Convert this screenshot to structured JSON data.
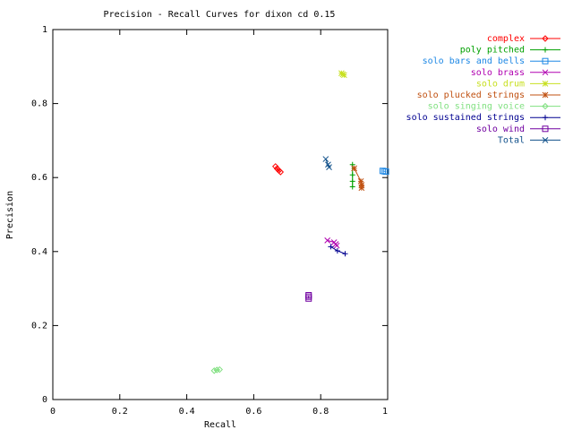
{
  "chart_data": {
    "type": "line",
    "title": "Precision - Recall Curves for dixon cd 0.15",
    "xlabel": "Recall",
    "ylabel": "Precision",
    "xlim": [
      0,
      1
    ],
    "ylim": [
      0,
      1
    ],
    "xticks": [
      "0",
      "0.2",
      "0.4",
      "0.6",
      "0.8",
      "1"
    ],
    "yticks": [
      "0",
      "0.2",
      "0.4",
      "0.6",
      "0.8",
      "1"
    ],
    "grid": false,
    "legend": "outside-right",
    "series": [
      {
        "name": "complex",
        "color": "#ff0000",
        "marker": "diamond",
        "points": [
          [
            0.665,
            0.63
          ],
          [
            0.67,
            0.624
          ],
          [
            0.675,
            0.619
          ],
          [
            0.68,
            0.615
          ]
        ]
      },
      {
        "name": "poly pitched",
        "color": "#00a000",
        "marker": "plus",
        "points": [
          [
            0.895,
            0.635
          ],
          [
            0.895,
            0.607
          ],
          [
            0.895,
            0.59
          ],
          [
            0.895,
            0.575
          ]
        ]
      },
      {
        "name": "solo bars and bells",
        "color": "#1e88e5",
        "marker": "square",
        "points": [
          [
            0.985,
            0.618
          ],
          [
            0.99,
            0.617
          ],
          [
            0.995,
            0.616
          ]
        ]
      },
      {
        "name": "solo brass",
        "color": "#b000b0",
        "marker": "x",
        "points": [
          [
            0.82,
            0.43
          ],
          [
            0.84,
            0.425
          ],
          [
            0.845,
            0.42
          ],
          [
            0.848,
            0.416
          ]
        ]
      },
      {
        "name": "solo drum",
        "color": "#c8e020",
        "marker": "star",
        "points": [
          [
            0.862,
            0.882
          ],
          [
            0.866,
            0.879
          ],
          [
            0.87,
            0.877
          ]
        ]
      },
      {
        "name": "solo plucked strings",
        "color": "#c05010",
        "marker": "star",
        "points": [
          [
            0.9,
            0.625
          ],
          [
            0.92,
            0.59
          ],
          [
            0.922,
            0.58
          ],
          [
            0.922,
            0.572
          ]
        ]
      },
      {
        "name": "solo singing voice",
        "color": "#80e080",
        "marker": "diamond",
        "points": [
          [
            0.482,
            0.078
          ],
          [
            0.49,
            0.08
          ],
          [
            0.498,
            0.081
          ]
        ]
      },
      {
        "name": "solo sustained strings",
        "color": "#000090",
        "marker": "plus",
        "points": [
          [
            0.83,
            0.413
          ],
          [
            0.85,
            0.402
          ],
          [
            0.873,
            0.394
          ]
        ]
      },
      {
        "name": "solo wind",
        "color": "#7000a0",
        "marker": "square",
        "points": [
          [
            0.764,
            0.282
          ],
          [
            0.764,
            0.278
          ],
          [
            0.764,
            0.273
          ]
        ]
      },
      {
        "name": "Total",
        "color": "#10508a",
        "marker": "x",
        "points": [
          [
            0.815,
            0.65
          ],
          [
            0.822,
            0.635
          ],
          [
            0.825,
            0.628
          ]
        ]
      }
    ]
  }
}
